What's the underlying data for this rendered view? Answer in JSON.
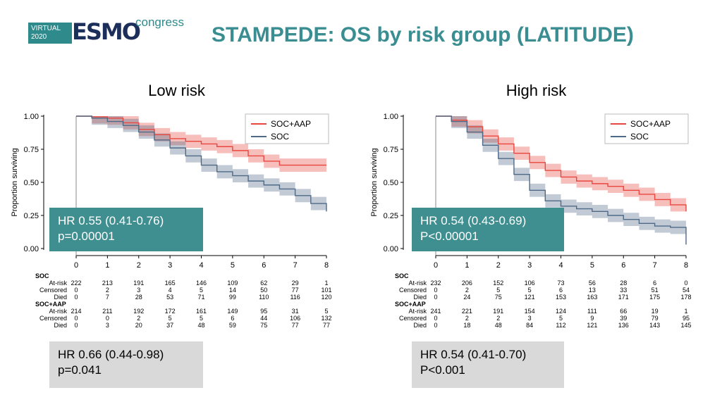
{
  "logo": {
    "virtual": "VIRTUAL",
    "year": "2020",
    "esmo": "ESMO",
    "congress": "congress"
  },
  "page_title": "STAMPEDE: OS by risk group (LATITUDE)",
  "colors": {
    "teal": "#3f8e90",
    "soc_aap": "#e8473f",
    "soc": "#4f6a86",
    "grey": "#d9d9d9"
  },
  "boxes": [
    {
      "hr": "HR 0.55 (0.41-0.76)",
      "p": "p=0.00001",
      "grey_hr": "HR 0.66 (0.44-0.98)",
      "grey_p": "p=0.041"
    },
    {
      "hr": "HR 0.54 (0.43-0.69)",
      "p": "P<0.00001",
      "grey_hr": "HR 0.54 (0.41-0.70)",
      "grey_p": "P<0.001"
    }
  ],
  "chart_data": [
    {
      "type": "line",
      "title": "Low risk",
      "ylabel": "Proportion surviving",
      "xlim": [
        0,
        8
      ],
      "ylim": [
        0,
        1
      ],
      "xticks": [
        "0",
        "1",
        "2",
        "3",
        "4",
        "5",
        "6",
        "7",
        "8"
      ],
      "yticks": [
        "0.00",
        "0.25",
        "0.50",
        "0.75",
        "1.00"
      ],
      "legend_position": "top-right",
      "series": [
        {
          "name": "SOC+AAP",
          "color": "#e8473f",
          "x": [
            0,
            0.5,
            1,
            1.5,
            2,
            2.5,
            3,
            3.5,
            4,
            4.5,
            5,
            5.5,
            6,
            6.5,
            7,
            7.5,
            8
          ],
          "y": [
            1,
            0.995,
            0.985,
            0.95,
            0.9,
            0.86,
            0.83,
            0.81,
            0.79,
            0.77,
            0.74,
            0.7,
            0.66,
            0.63,
            0.63,
            0.63,
            0.63
          ]
        },
        {
          "name": "SOC",
          "color": "#4f6a86",
          "x": [
            0,
            0.5,
            1,
            1.5,
            2,
            2.5,
            3,
            3.5,
            4,
            4.5,
            5,
            5.5,
            6,
            6.5,
            7,
            7.5,
            8
          ],
          "y": [
            1,
            0.985,
            0.96,
            0.93,
            0.88,
            0.82,
            0.76,
            0.7,
            0.63,
            0.58,
            0.55,
            0.51,
            0.48,
            0.45,
            0.4,
            0.34,
            0.28
          ]
        }
      ],
      "risk_table": {
        "header": "SOC",
        "soc_rows": [
          {
            "label": "At-risk",
            "values": [
              "222",
              "213",
              "191",
              "165",
              "146",
              "109",
              "62",
              "29",
              "1"
            ]
          },
          {
            "label": "Censored",
            "values": [
              "0",
              "2",
              "3",
              "4",
              "5",
              "14",
              "50",
              "77",
              "101"
            ]
          },
          {
            "label": "Died",
            "values": [
              "0",
              "7",
              "28",
              "53",
              "71",
              "99",
              "110",
              "116",
              "120"
            ]
          }
        ],
        "header2": "SOC+AAP",
        "aap_rows": [
          {
            "label": "At-risk",
            "values": [
              "214",
              "211",
              "192",
              "172",
              "161",
              "149",
              "95",
              "31",
              "5"
            ]
          },
          {
            "label": "Censored",
            "values": [
              "0",
              "0",
              "2",
              "5",
              "5",
              "6",
              "44",
              "106",
              "132"
            ]
          },
          {
            "label": "Died",
            "values": [
              "0",
              "3",
              "20",
              "37",
              "48",
              "59",
              "75",
              "77",
              "77"
            ]
          }
        ]
      }
    },
    {
      "type": "line",
      "title": "High risk",
      "ylabel": "Proportion surviving",
      "xlim": [
        0,
        8
      ],
      "ylim": [
        0,
        1
      ],
      "xticks": [
        "0",
        "1",
        "2",
        "3",
        "4",
        "5",
        "6",
        "7",
        "8"
      ],
      "yticks": [
        "0.00",
        "0.25",
        "0.50",
        "0.75",
        "1.00"
      ],
      "legend_position": "top-right",
      "series": [
        {
          "name": "SOC+AAP",
          "color": "#e8473f",
          "x": [
            0,
            0.5,
            1,
            1.5,
            2,
            2.5,
            3,
            3.5,
            4,
            4.5,
            5,
            5.5,
            6,
            6.5,
            7,
            7.5,
            8
          ],
          "y": [
            1,
            0.97,
            0.92,
            0.85,
            0.79,
            0.72,
            0.65,
            0.59,
            0.54,
            0.51,
            0.49,
            0.47,
            0.44,
            0.41,
            0.37,
            0.33,
            0.28
          ]
        },
        {
          "name": "SOC",
          "color": "#4f6a86",
          "x": [
            0,
            0.5,
            1,
            1.5,
            2,
            2.5,
            3,
            3.5,
            4,
            4.5,
            5,
            5.5,
            6,
            6.5,
            7,
            7.5,
            7.9,
            8
          ],
          "y": [
            1,
            0.96,
            0.88,
            0.78,
            0.68,
            0.56,
            0.44,
            0.36,
            0.32,
            0.3,
            0.28,
            0.25,
            0.22,
            0.19,
            0.17,
            0.16,
            0.16,
            0.03
          ]
        }
      ],
      "risk_table": {
        "header": "SOC",
        "soc_rows": [
          {
            "label": "At-risk",
            "values": [
              "232",
              "206",
              "152",
              "106",
              "73",
              "56",
              "28",
              "6",
              "0"
            ]
          },
          {
            "label": "Censored",
            "values": [
              "0",
              "2",
              "5",
              "5",
              "6",
              "13",
              "33",
              "51",
              "54"
            ]
          },
          {
            "label": "Died",
            "values": [
              "0",
              "24",
              "75",
              "121",
              "153",
              "163",
              "171",
              "175",
              "178"
            ]
          }
        ],
        "header2": "SOC+AAP",
        "aap_rows": [
          {
            "label": "At-risk",
            "values": [
              "241",
              "221",
              "191",
              "154",
              "124",
              "111",
              "66",
              "19",
              "1"
            ]
          },
          {
            "label": "Censored",
            "values": [
              "0",
              "2",
              "2",
              "3",
              "5",
              "9",
              "39",
              "79",
              "95"
            ]
          },
          {
            "label": "Died",
            "values": [
              "0",
              "18",
              "48",
              "84",
              "112",
              "121",
              "136",
              "143",
              "145"
            ]
          }
        ]
      }
    }
  ]
}
